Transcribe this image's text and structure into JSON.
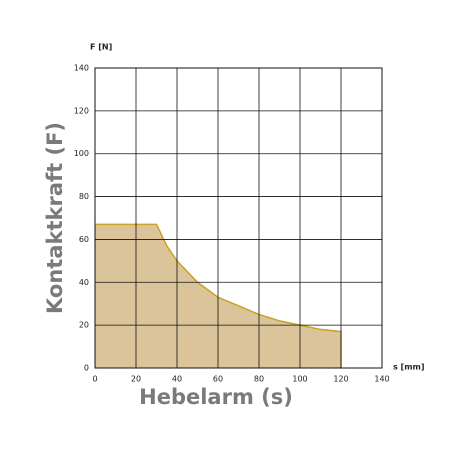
{
  "chart_data": {
    "type": "area",
    "x_axis_unit": "s [mm]",
    "y_axis_unit": "F [N]",
    "xlabel": "Hebelarm (s)",
    "ylabel": "Kontaktkraft (F)",
    "x": [
      0,
      30,
      35,
      40,
      50,
      60,
      70,
      80,
      90,
      100,
      110,
      120
    ],
    "values": [
      67,
      67,
      57,
      50,
      40,
      33,
      29,
      25,
      22,
      20,
      18,
      17
    ],
    "color": "#c9a227",
    "fill": "#dcc49a",
    "xlim": [
      0,
      140
    ],
    "xticks": [
      0,
      20,
      40,
      60,
      80,
      100,
      120,
      140
    ],
    "ylim": [
      0,
      140
    ],
    "yticks": [
      0,
      20,
      40,
      60,
      80,
      100,
      120,
      140
    ],
    "grid": true
  }
}
